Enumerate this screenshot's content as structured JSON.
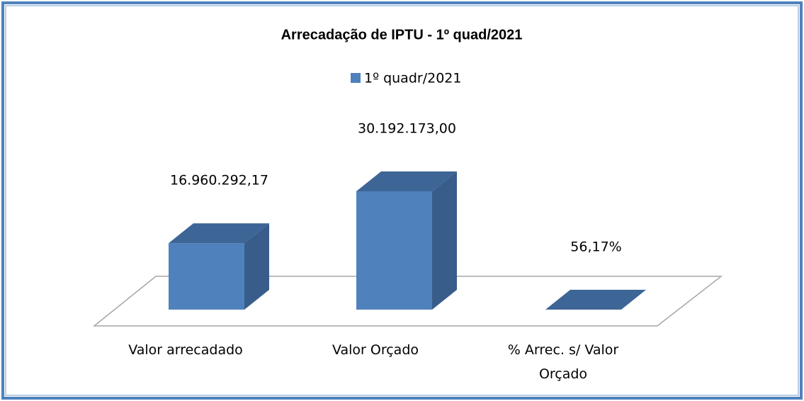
{
  "chart_data": {
    "type": "bar3d",
    "title": "Arrecadação de IPTU - 1º quad/2021",
    "categories": [
      "Valor arrecadado",
      "Valor Orçado",
      "% Arrec. s/ Valor Orçado"
    ],
    "series": [
      {
        "name": "1º quadr/2021",
        "color": "#4f81bd",
        "values": [
          16960292.17,
          30192173.0,
          56.17
        ],
        "value_labels": [
          "16.960.292,17",
          "30.192.173,00",
          "56,17%"
        ]
      }
    ],
    "legend": "top"
  }
}
